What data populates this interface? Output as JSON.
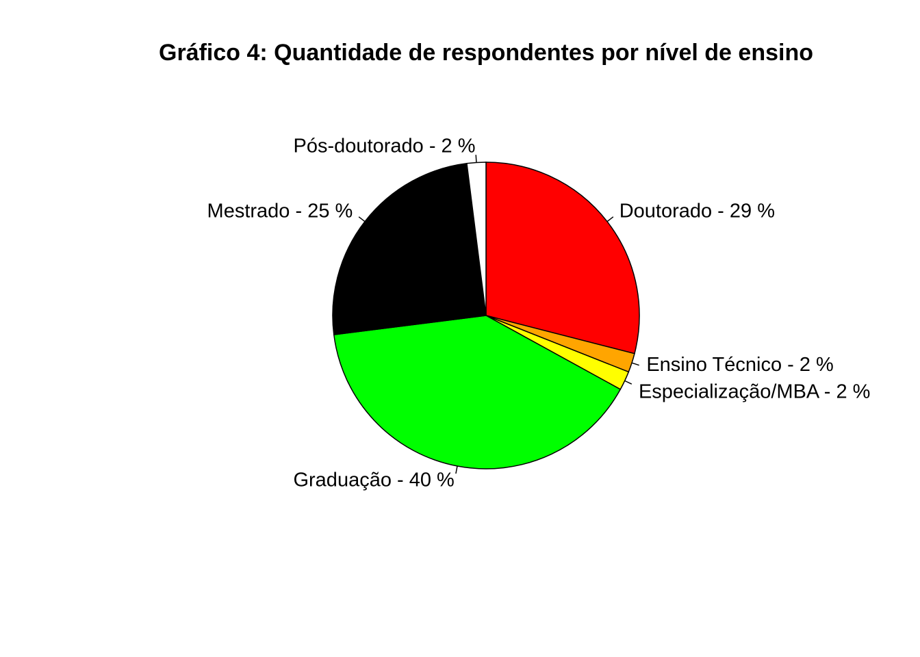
{
  "chart_data": {
    "type": "pie",
    "title": "Gráfico 4: Quantidade de respondentes por nível de ensino",
    "slices": [
      {
        "label": "Doutorado - 29 %",
        "value": 29,
        "color": "#FF0000"
      },
      {
        "label": "Ensino Técnico - 2 %",
        "value": 2,
        "color": "#FFA500"
      },
      {
        "label": "Especialização/MBA - 2 %",
        "value": 2,
        "color": "#FFFF00"
      },
      {
        "label": "Graduação - 40 %",
        "value": 40,
        "color": "#00FF00"
      },
      {
        "label": "Mestrado - 25 %",
        "value": 25,
        "color": "#000000"
      },
      {
        "label": "Pós-doutorado - 2 %",
        "value": 2,
        "color": "#FFFFFF"
      }
    ],
    "start_angle_deg": 90,
    "direction": "clockwise"
  }
}
